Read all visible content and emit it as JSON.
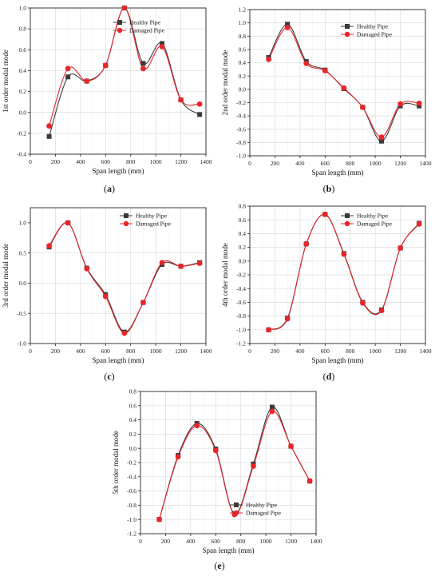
{
  "chart_data": [
    {
      "type": "line",
      "caption_letter": "a",
      "xlabel": "Span length (mm)",
      "ylabel": "1st order modal mode",
      "xlim": [
        0,
        1400
      ],
      "ylim": [
        -0.4,
        1.0
      ],
      "xticks": [
        0,
        200,
        400,
        600,
        800,
        1000,
        1200,
        1400
      ],
      "yticks": [
        -0.4,
        -0.2,
        0.0,
        0.2,
        0.4,
        0.6,
        0.8,
        1.0
      ],
      "ytick_labels": [
        "-0.4",
        "-0.2",
        "0.0",
        "0.2",
        "0.4",
        "0.6",
        "0.8",
        "1.0"
      ],
      "grid": true,
      "legend_position": "top-right",
      "x": [
        150,
        300,
        450,
        600,
        750,
        900,
        1050,
        1200,
        1350
      ],
      "series": [
        {
          "name": "Healthy Pipe",
          "marker": "square",
          "color": "#3a3a3a",
          "values": [
            -0.23,
            0.34,
            0.3,
            0.45,
            1.0,
            0.47,
            0.66,
            0.12,
            -0.02
          ]
        },
        {
          "name": "Damaged Pipe",
          "marker": "circle",
          "color": "#e8262a",
          "values": [
            -0.13,
            0.42,
            0.3,
            0.45,
            1.0,
            0.42,
            0.63,
            0.12,
            0.08
          ]
        }
      ]
    },
    {
      "type": "line",
      "caption_letter": "b",
      "xlabel": "Span length (mm)",
      "ylabel": "2nd order modal mode",
      "xlim": [
        0,
        1400
      ],
      "ylim": [
        -1.0,
        1.2
      ],
      "xticks": [
        0,
        200,
        400,
        600,
        800,
        1000,
        1200,
        1400
      ],
      "yticks": [
        -1.0,
        -0.8,
        -0.6,
        -0.4,
        -0.2,
        0.0,
        0.2,
        0.4,
        0.6,
        0.8,
        1.0,
        1.2
      ],
      "ytick_labels": [
        "-1.0",
        "-0.8",
        "-0.6",
        "-0.4",
        "-0.2",
        "0.0",
        "0.2",
        "0.4",
        "0.6",
        "0.8",
        "1.0",
        "1.2"
      ],
      "grid": true,
      "legend_position": "top-right",
      "x": [
        150,
        300,
        450,
        600,
        750,
        900,
        1050,
        1200,
        1350
      ],
      "series": [
        {
          "name": "Healthy Pipe",
          "marker": "square",
          "color": "#3a3a3a",
          "values": [
            0.48,
            0.98,
            0.42,
            0.29,
            0.01,
            -0.27,
            -0.78,
            -0.25,
            -0.25
          ]
        },
        {
          "name": "Damaged Pipe",
          "marker": "circle",
          "color": "#e8262a",
          "values": [
            0.45,
            0.93,
            0.39,
            0.28,
            0.02,
            -0.27,
            -0.72,
            -0.22,
            -0.21
          ]
        }
      ]
    },
    {
      "type": "line",
      "caption_letter": "c",
      "xlabel": "Span length (mm)",
      "ylabel": "3rd order modal mode",
      "xlim": [
        0,
        1400
      ],
      "ylim": [
        -1.0,
        1.25
      ],
      "xticks": [
        0,
        200,
        400,
        600,
        800,
        1000,
        1200,
        1400
      ],
      "yticks": [
        -1.0,
        -0.5,
        0.0,
        0.5,
        1.0
      ],
      "ytick_labels": [
        "-1.0",
        "-0.5",
        "0.0",
        "0.5",
        "1.0"
      ],
      "grid": true,
      "legend_position": "top-right",
      "x": [
        150,
        300,
        450,
        600,
        750,
        900,
        1050,
        1200,
        1350
      ],
      "series": [
        {
          "name": "Healthy Pipe",
          "marker": "square",
          "color": "#3a3a3a",
          "values": [
            0.6,
            1.0,
            0.25,
            -0.19,
            -0.81,
            -0.32,
            0.31,
            0.28,
            0.34
          ]
        },
        {
          "name": "Damaged Pipe",
          "marker": "circle",
          "color": "#e8262a",
          "values": [
            0.62,
            1.0,
            0.24,
            -0.22,
            -0.83,
            -0.32,
            0.34,
            0.28,
            0.33
          ]
        }
      ]
    },
    {
      "type": "line",
      "caption_letter": "d",
      "xlabel": "Span length (mm)",
      "ylabel": "4th order modal mode",
      "xlim": [
        0,
        1400
      ],
      "ylim": [
        -1.2,
        0.8
      ],
      "xticks": [
        0,
        200,
        400,
        600,
        800,
        1000,
        1200,
        1400
      ],
      "yticks": [
        -1.2,
        -1.0,
        -0.8,
        -0.6,
        -0.4,
        -0.2,
        0.0,
        0.2,
        0.4,
        0.6,
        0.8
      ],
      "ytick_labels": [
        "-1.2",
        "-1.0",
        "-0.8",
        "-0.6",
        "-0.4",
        "-0.2",
        "0.0",
        "0.2",
        "0.4",
        "0.6",
        "0.8"
      ],
      "grid": true,
      "legend_position": "top-right",
      "x": [
        150,
        300,
        450,
        600,
        750,
        900,
        1050,
        1200,
        1350
      ],
      "series": [
        {
          "name": "Healthy Pipe",
          "marker": "square",
          "color": "#3a3a3a",
          "values": [
            -1.0,
            -0.83,
            0.25,
            0.68,
            0.11,
            -0.6,
            -0.71,
            0.19,
            0.55
          ]
        },
        {
          "name": "Damaged Pipe",
          "marker": "circle",
          "color": "#e8262a",
          "values": [
            -1.0,
            -0.84,
            0.25,
            0.68,
            0.1,
            -0.61,
            -0.72,
            0.19,
            0.54
          ]
        }
      ]
    },
    {
      "type": "line",
      "caption_letter": "e",
      "xlabel": "Span length (mm)",
      "ylabel": "5th order modal mode",
      "xlim": [
        0,
        1400
      ],
      "ylim": [
        -1.2,
        0.8
      ],
      "xticks": [
        0,
        200,
        400,
        600,
        800,
        1000,
        1200,
        1400
      ],
      "yticks": [
        -1.2,
        -1.0,
        -0.8,
        -0.6,
        -0.4,
        -0.2,
        0.0,
        0.2,
        0.4,
        0.6,
        0.8
      ],
      "ytick_labels": [
        "-1.2",
        "-1.0",
        "-0.8",
        "-0.6",
        "-0.4",
        "-0.2",
        "0.0",
        "0.2",
        "0.4",
        "0.6",
        "0.8"
      ],
      "grid": true,
      "legend_position": "bottom-right",
      "x": [
        150,
        300,
        450,
        600,
        750,
        900,
        1050,
        1200,
        1350
      ],
      "series": [
        {
          "name": "Healthy Pipe",
          "marker": "square",
          "color": "#3a3a3a",
          "values": [
            -1.0,
            -0.1,
            0.35,
            -0.01,
            -0.92,
            -0.22,
            0.58,
            0.03,
            -0.46
          ]
        },
        {
          "name": "Damaged Pipe",
          "marker": "circle",
          "color": "#e8262a",
          "values": [
            -1.0,
            -0.12,
            0.32,
            -0.03,
            -0.93,
            -0.25,
            0.52,
            0.03,
            -0.46
          ]
        }
      ]
    }
  ]
}
